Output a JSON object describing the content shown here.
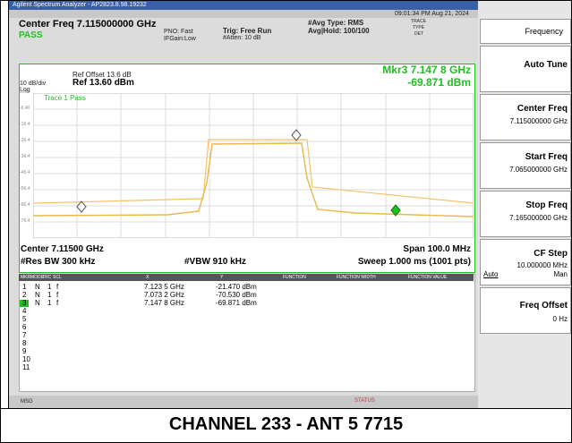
{
  "window": {
    "title": "Agilent Spectrum Analyzer - AP2823.8.98.19232"
  },
  "header": {
    "center_freq": "Center Freq 7.115000000 GHz",
    "pass": "PASS",
    "pno": "PNO: Fast",
    "ifgain": "IFGain:Low",
    "trig": "Trig: Free Run",
    "atten": "#Atten: 10 dB",
    "avg_type": "#Avg Type: RMS",
    "avg_hold": "Avg|Hold: 100/100",
    "datetime": "09:01:34 PM Aug 21, 2024",
    "trace": "TRACE",
    "type": "TYPE",
    "det": "DET"
  },
  "plot": {
    "ref_offset": "Ref Offset 13.6 dB",
    "ref": "Ref 13.60 dBm",
    "scale": "10 dB/div",
    "log": "Log",
    "marker_freq": "Mkr3 7.147 8 GHz",
    "marker_level": "-69.871 dBm",
    "trace_status": "Trace 1 Pass",
    "y_labels": [
      "3.60",
      "-6.40",
      "-16.4",
      "-26.4",
      "-36.4",
      "-46.4",
      "-56.4",
      "-66.4",
      "-76.4"
    ],
    "center": "Center 7.11500 GHz",
    "span": "Span 100.0 MHz",
    "rbw": "#Res BW 300 kHz",
    "vbw": "#VBW 910 kHz",
    "sweep": "Sweep 1.000 ms (1001 pts)"
  },
  "marker_table": {
    "headers": [
      "MKR",
      "MODE",
      "TRC",
      "SCL",
      "X",
      "Y",
      "FUNCTION",
      "FUNCTION WIDTH",
      "FUNCTION VALUE"
    ],
    "rows": [
      [
        "1",
        "N",
        "1",
        "f",
        "7.123 5 GHz",
        "-21.470 dBm"
      ],
      [
        "2",
        "N",
        "1",
        "f",
        "7.073 2 GHz",
        "-70.530 dBm"
      ],
      [
        "3",
        "N",
        "1",
        "f",
        "7.147 8 GHz",
        "-69.871 dBm"
      ],
      [
        "4"
      ],
      [
        "5"
      ],
      [
        "6"
      ],
      [
        "7"
      ],
      [
        "8"
      ],
      [
        "9"
      ],
      [
        "10"
      ],
      [
        "11"
      ]
    ]
  },
  "status": {
    "msg": "MSG",
    "status": "STATUS"
  },
  "menu": {
    "title": "Frequency",
    "auto_tune": "Auto Tune",
    "center_freq": "Center Freq",
    "center_value": "7.115000000 GHz",
    "start_freq": "Start Freq",
    "start_value": "7.065000000 GHz",
    "stop_freq": "Stop Freq",
    "stop_value": "7.165000000 GHz",
    "cf_step": "CF Step",
    "cf_value": "10.000000 MHz",
    "auto": "Auto",
    "man": "Man",
    "freq_offset": "Freq Offset",
    "offset_value": "0 Hz"
  },
  "caption": "CHANNEL 233 - ANT 5 7715"
}
